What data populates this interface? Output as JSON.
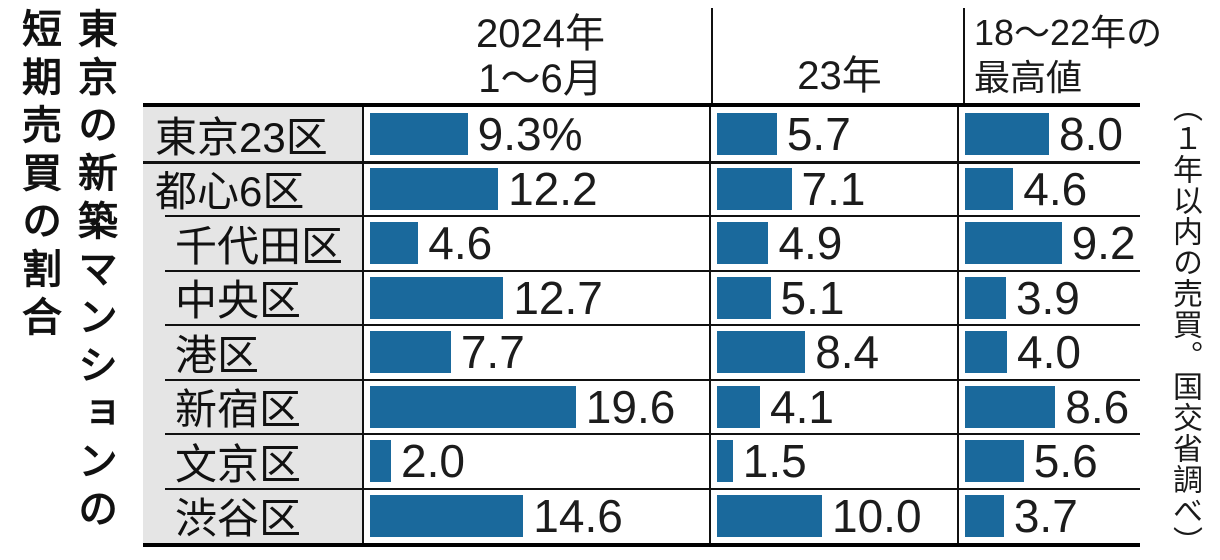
{
  "title": {
    "full": "東京の新築マンションの短期売買の割合",
    "line1": "東京の新築マンションの",
    "line2": "短期売買の割合"
  },
  "source_note": "（１年以内の売買。国交省調べ）",
  "chart_data": {
    "type": "bar",
    "orientation": "horizontal",
    "unit": "%",
    "title": "東京の新築マンションの短期売買の割合",
    "note": "（１年以内の売買。国交省調べ）",
    "bar_color": "#1a699c",
    "label_bg_color": "#e5e5e5",
    "xlim": [
      0,
      25
    ],
    "columns": [
      {
        "id": "2024-1-6",
        "label_line1": "2024年",
        "label_line2": "1〜6月"
      },
      {
        "id": "2023",
        "label_line1": "",
        "label_line2": "23年"
      },
      {
        "id": "2018-22-max",
        "label_line1": "18〜22年の",
        "label_line2": "最高値"
      }
    ],
    "rows": [
      {
        "name": "東京23区",
        "group": true,
        "indent": false,
        "values": [
          9.3,
          5.7,
          8.0
        ],
        "display": [
          "9.3%",
          "5.7",
          "8.0"
        ]
      },
      {
        "name": "都心6区",
        "group": false,
        "indent": false,
        "values": [
          12.2,
          7.1,
          4.6
        ],
        "display": [
          "12.2",
          "7.1",
          "4.6"
        ]
      },
      {
        "name": "千代田区",
        "group": false,
        "indent": true,
        "values": [
          4.6,
          4.9,
          9.2
        ],
        "display": [
          "4.6",
          "4.9",
          "9.2"
        ]
      },
      {
        "name": "中央区",
        "group": false,
        "indent": true,
        "values": [
          12.7,
          5.1,
          3.9
        ],
        "display": [
          "12.7",
          "5.1",
          "3.9"
        ]
      },
      {
        "name": "港区",
        "group": false,
        "indent": true,
        "values": [
          7.7,
          8.4,
          4.0
        ],
        "display": [
          "7.7",
          "8.4",
          "4.0"
        ]
      },
      {
        "name": "新宿区",
        "group": false,
        "indent": true,
        "values": [
          19.6,
          4.1,
          8.6
        ],
        "display": [
          "19.6",
          "4.1",
          "8.6"
        ]
      },
      {
        "name": "文京区",
        "group": false,
        "indent": true,
        "values": [
          2.0,
          1.5,
          5.6
        ],
        "display": [
          "2.0",
          "1.5",
          "5.6"
        ]
      },
      {
        "name": "渋谷区",
        "group": false,
        "indent": true,
        "values": [
          14.6,
          10.0,
          3.7
        ],
        "display": [
          "14.6",
          "10.0",
          "3.7"
        ]
      }
    ]
  }
}
